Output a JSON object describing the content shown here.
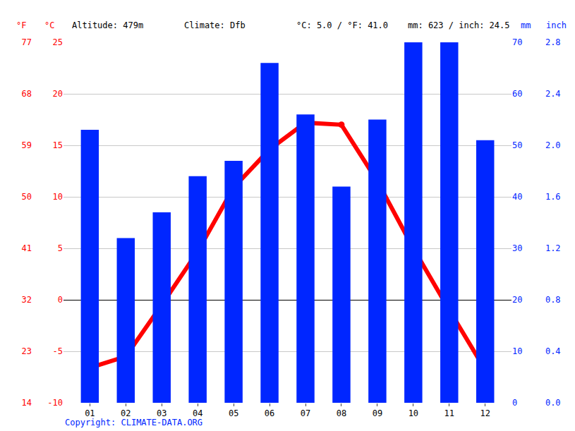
{
  "chart_data": {
    "type": "bar",
    "annotations": [
      "Altitude: 479m",
      "Climate: Dfb",
      "°C: 5.0 / °F: 41.0",
      "mm: 623 / inch: 24.5"
    ],
    "source": "Copyright: CLIMATE-DATA.ORG",
    "categories": [
      "01",
      "02",
      "03",
      "04",
      "05",
      "06",
      "07",
      "08",
      "09",
      "10",
      "11",
      "12"
    ],
    "series": [
      {
        "type": "line",
        "color": "#ff0000",
        "marker": "circle",
        "line_style": "solid",
        "values": [
          -6.6,
          -5.5,
          -0.5,
          4.7,
          10.9,
          14.6,
          17.2,
          17.0,
          11.5,
          5.0,
          -1.0,
          -6.8
        ]
      },
      {
        "type": "bar",
        "color": "#0026ff",
        "axis": "y2",
        "values": [
          53,
          32,
          37,
          44,
          47,
          66,
          56,
          42,
          55,
          70,
          70,
          51
        ]
      }
    ],
    "ylabel": "°C",
    "ylim": [
      -10,
      25
    ],
    "yticks": [
      -10,
      -5,
      0,
      5,
      10,
      15,
      20,
      25
    ],
    "y2label": "mm",
    "y2lim": [
      0,
      70
    ],
    "y2ticks": [
      0,
      10,
      20,
      30,
      40,
      50,
      60,
      70
    ],
    "y3label": "°F",
    "y3lim": [
      14,
      77
    ],
    "y3ticks": [
      14,
      23,
      32,
      41,
      50,
      59,
      68,
      77
    ],
    "y4label": "inch",
    "y4lim": [
      0,
      2.8
    ],
    "y4ticks": [
      {
        "value": 0,
        "label": "0.0"
      },
      0.4,
      0.8,
      1.2,
      1.6,
      {
        "value": 2,
        "label": "2.0"
      },
      2.4,
      2.8
    ],
    "grid": true
  }
}
